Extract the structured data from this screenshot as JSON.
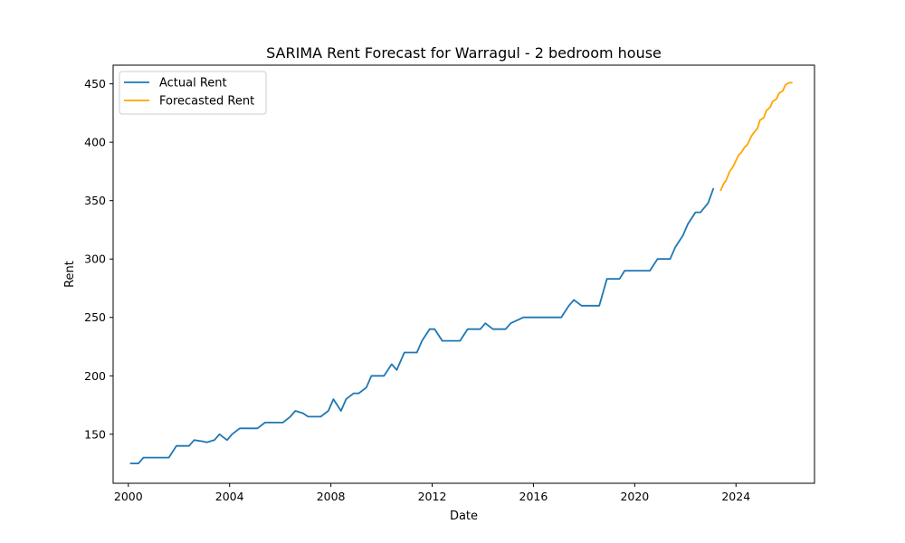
{
  "chart_data": {
    "type": "line",
    "title": "SARIMA Rent Forecast for Warragul - 2 bedroom house",
    "xlabel": "Date",
    "ylabel": "Rent",
    "xlim": [
      1999.4,
      2027.1
    ],
    "ylim": [
      108,
      466
    ],
    "x_ticks": [
      2000,
      2004,
      2008,
      2012,
      2016,
      2020,
      2024
    ],
    "x_tick_labels": [
      "2000",
      "2004",
      "2008",
      "2012",
      "2016",
      "2020",
      "2024"
    ],
    "y_ticks": [
      150,
      200,
      250,
      300,
      350,
      400,
      450
    ],
    "y_tick_labels": [
      "150",
      "200",
      "250",
      "300",
      "350",
      "400",
      "450"
    ],
    "grid": false,
    "legend_position": "top-left",
    "series": [
      {
        "name": "Actual Rent",
        "color": "#1f77b4",
        "x": [
          2000.1,
          2000.4,
          2000.6,
          2000.9,
          2001.1,
          2001.4,
          2001.6,
          2001.9,
          2002.1,
          2002.4,
          2002.6,
          2002.9,
          2003.1,
          2003.4,
          2003.6,
          2003.9,
          2004.1,
          2004.4,
          2004.6,
          2004.9,
          2005.1,
          2005.4,
          2005.6,
          2005.9,
          2006.1,
          2006.4,
          2006.6,
          2006.9,
          2007.1,
          2007.4,
          2007.6,
          2007.9,
          2008.1,
          2008.4,
          2008.6,
          2008.9,
          2009.1,
          2009.4,
          2009.6,
          2009.9,
          2010.1,
          2010.4,
          2010.6,
          2010.9,
          2011.1,
          2011.4,
          2011.6,
          2011.9,
          2012.1,
          2012.4,
          2012.6,
          2012.9,
          2013.1,
          2013.4,
          2013.6,
          2013.9,
          2014.1,
          2014.4,
          2014.6,
          2014.9,
          2015.1,
          2015.4,
          2015.6,
          2015.9,
          2016.1,
          2016.4,
          2016.6,
          2016.9,
          2017.1,
          2017.4,
          2017.6,
          2017.9,
          2018.1,
          2018.4,
          2018.6,
          2018.9,
          2019.1,
          2019.4,
          2019.6,
          2019.9,
          2020.1,
          2020.4,
          2020.6,
          2020.9,
          2021.1,
          2021.4,
          2021.6,
          2021.9,
          2022.1,
          2022.4,
          2022.6,
          2022.9,
          2023.1
        ],
        "values": [
          125,
          125,
          130,
          130,
          130,
          130,
          130,
          140,
          140,
          140,
          145,
          144,
          143,
          145,
          150,
          145,
          150,
          155,
          155,
          155,
          155,
          160,
          160,
          160,
          160,
          165,
          170,
          168,
          165,
          165,
          165,
          170,
          180,
          170,
          180,
          185,
          185,
          190,
          200,
          200,
          200,
          210,
          205,
          220,
          220,
          220,
          230,
          240,
          240,
          230,
          230,
          230,
          230,
          240,
          240,
          240,
          245,
          240,
          240,
          240,
          245,
          248,
          250,
          250,
          250,
          250,
          250,
          250,
          250,
          260,
          265,
          260,
          260,
          260,
          260,
          283,
          283,
          283,
          290,
          290,
          290,
          290,
          290,
          300,
          300,
          300,
          310,
          320,
          330,
          340,
          340,
          348,
          360
        ]
      },
      {
        "name": "Forecasted Rent",
        "color": "#ffa500",
        "x": [
          2023.4,
          2023.5,
          2023.6,
          2023.75,
          2023.85,
          2023.95,
          2024.1,
          2024.2,
          2024.35,
          2024.45,
          2024.6,
          2024.7,
          2024.85,
          2024.95,
          2025.1,
          2025.2,
          2025.35,
          2025.45,
          2025.6,
          2025.7,
          2025.85,
          2025.95,
          2026.1,
          2026.2
        ],
        "values": [
          359,
          364,
          367,
          375,
          378,
          382,
          389,
          391,
          396,
          398,
          405,
          408,
          412,
          419,
          421,
          427,
          430,
          435,
          437,
          442,
          444,
          449,
          451,
          451
        ]
      }
    ]
  }
}
